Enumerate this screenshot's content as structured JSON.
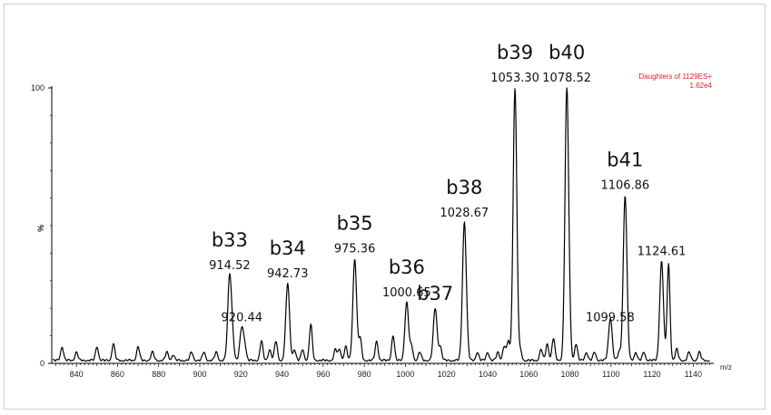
{
  "chart_data": {
    "type": "line",
    "title": "",
    "xlabel": "m/z",
    "ylabel": "%",
    "xlim": [
      828,
      1150
    ],
    "ylim": [
      0,
      100
    ],
    "x_ticks": [
      840,
      860,
      880,
      900,
      920,
      940,
      960,
      980,
      1000,
      1020,
      1040,
      1060,
      1080,
      1100,
      1120,
      1140
    ],
    "y_ticks": [
      0,
      100
    ],
    "info": {
      "line1": "Daughters of 1129ES+",
      "line2": "1.62e4"
    },
    "peaks": [
      {
        "ion": "b33",
        "mz": 914.52,
        "mz_label": "914.52",
        "intensity": 31
      },
      {
        "ion": "",
        "mz": 920.44,
        "mz_label": "920.44",
        "intensity": 12
      },
      {
        "ion": "b34",
        "mz": 942.73,
        "mz_label": "942.73",
        "intensity": 28
      },
      {
        "ion": "b35",
        "mz": 975.36,
        "mz_label": "975.36",
        "intensity": 37
      },
      {
        "ion": "b36",
        "mz": 1000.65,
        "mz_label": "1000.65",
        "intensity": 21
      },
      {
        "ion": "b37",
        "mz": 1014.5,
        "mz_label": "",
        "intensity": 19
      },
      {
        "ion": "b38",
        "mz": 1028.67,
        "mz_label": "1028.67",
        "intensity": 50
      },
      {
        "ion": "b39",
        "mz": 1053.3,
        "mz_label": "1053.30",
        "intensity": 99
      },
      {
        "ion": "b40",
        "mz": 1078.52,
        "mz_label": "1078.52",
        "intensity": 99
      },
      {
        "ion": "",
        "mz": 1099.58,
        "mz_label": "1099.58",
        "intensity": 12
      },
      {
        "ion": "b41",
        "mz": 1106.86,
        "mz_label": "1106.86",
        "intensity": 60
      },
      {
        "ion": "",
        "mz": 1124.61,
        "mz_label": "1124.61",
        "intensity": 36
      }
    ],
    "minor_peaks": [
      [
        833,
        5
      ],
      [
        840,
        3
      ],
      [
        850,
        5
      ],
      [
        858,
        6
      ],
      [
        870,
        5
      ],
      [
        877,
        3
      ],
      [
        884,
        3
      ],
      [
        887,
        2
      ],
      [
        896,
        3
      ],
      [
        902,
        3
      ],
      [
        908,
        3
      ],
      [
        916,
        6
      ],
      [
        922,
        4
      ],
      [
        930,
        7
      ],
      [
        934,
        4
      ],
      [
        937,
        7
      ],
      [
        946,
        4
      ],
      [
        950,
        4
      ],
      [
        954,
        13
      ],
      [
        966,
        4
      ],
      [
        968,
        4
      ],
      [
        971,
        5
      ],
      [
        978,
        8
      ],
      [
        986,
        7
      ],
      [
        994,
        9
      ],
      [
        1003,
        5
      ],
      [
        1007,
        3
      ],
      [
        1017,
        5
      ],
      [
        1030,
        3
      ],
      [
        1035,
        3
      ],
      [
        1040,
        3
      ],
      [
        1045,
        3
      ],
      [
        1048,
        5
      ],
      [
        1050,
        7
      ],
      [
        1056,
        3
      ],
      [
        1066,
        4
      ],
      [
        1069,
        6
      ],
      [
        1072,
        8
      ],
      [
        1080,
        4
      ],
      [
        1083,
        6
      ],
      [
        1088,
        3
      ],
      [
        1092,
        3
      ],
      [
        1100,
        4
      ],
      [
        1104,
        3
      ],
      [
        1112,
        3
      ],
      [
        1116,
        3
      ],
      [
        1128,
        35
      ],
      [
        1132,
        4
      ],
      [
        1138,
        3
      ],
      [
        1143,
        3
      ]
    ]
  }
}
